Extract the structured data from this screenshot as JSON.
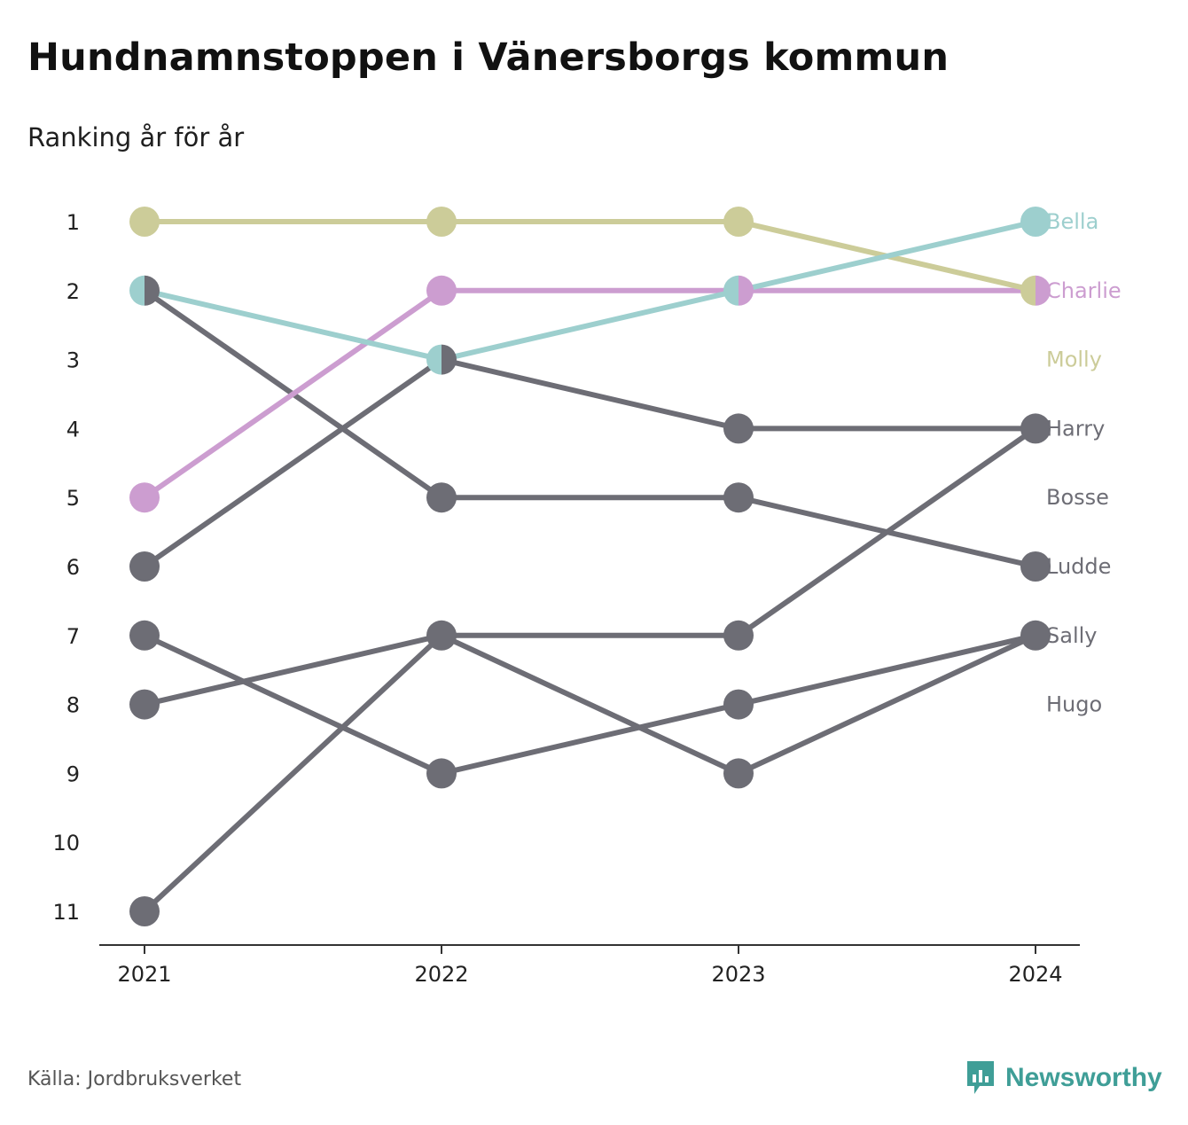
{
  "title": "Hundnamnstoppen i Vänersborgs kommun",
  "subtitle": "Ranking år för år",
  "source": "Källa: Jordbruksverket",
  "brand": "Newsworthy",
  "chart_data": {
    "type": "line",
    "subtype": "bump",
    "title": "Hundnamnstoppen i Vänersborgs kommun",
    "subtitle": "Ranking år för år",
    "x": [
      "2021",
      "2022",
      "2023",
      "2024"
    ],
    "y_ticks": [
      "1",
      "2",
      "3",
      "4",
      "5",
      "6",
      "7",
      "8",
      "9",
      "10",
      "11"
    ],
    "ylim": [
      1,
      11
    ],
    "y_inverted": true,
    "grid": false,
    "highlight_colors": {
      "Bella": "#9dcfce",
      "Charlie": "#cc9dd0",
      "Molly": "#cccc99"
    },
    "default_color": "#6d6d75",
    "series": [
      {
        "name": "Hugo",
        "ranks": [
          7,
          9,
          8,
          7
        ]
      },
      {
        "name": "Sally",
        "ranks": [
          11,
          7,
          9,
          7
        ]
      },
      {
        "name": "Ludde",
        "ranks": [
          2,
          5,
          5,
          6
        ]
      },
      {
        "name": "Bosse",
        "ranks": [
          8,
          7,
          7,
          4
        ]
      },
      {
        "name": "Harry",
        "ranks": [
          6,
          3,
          4,
          4
        ]
      },
      {
        "name": "Charlie",
        "ranks": [
          5,
          2,
          2,
          2
        ]
      },
      {
        "name": "Molly",
        "ranks": [
          1,
          1,
          1,
          2
        ]
      },
      {
        "name": "Bella",
        "ranks": [
          2,
          3,
          2,
          1
        ]
      }
    ],
    "end_labels": [
      "Bella",
      "Charlie",
      "Molly",
      "Harry",
      "Bosse",
      "Ludde",
      "Sally",
      "Hugo"
    ]
  }
}
